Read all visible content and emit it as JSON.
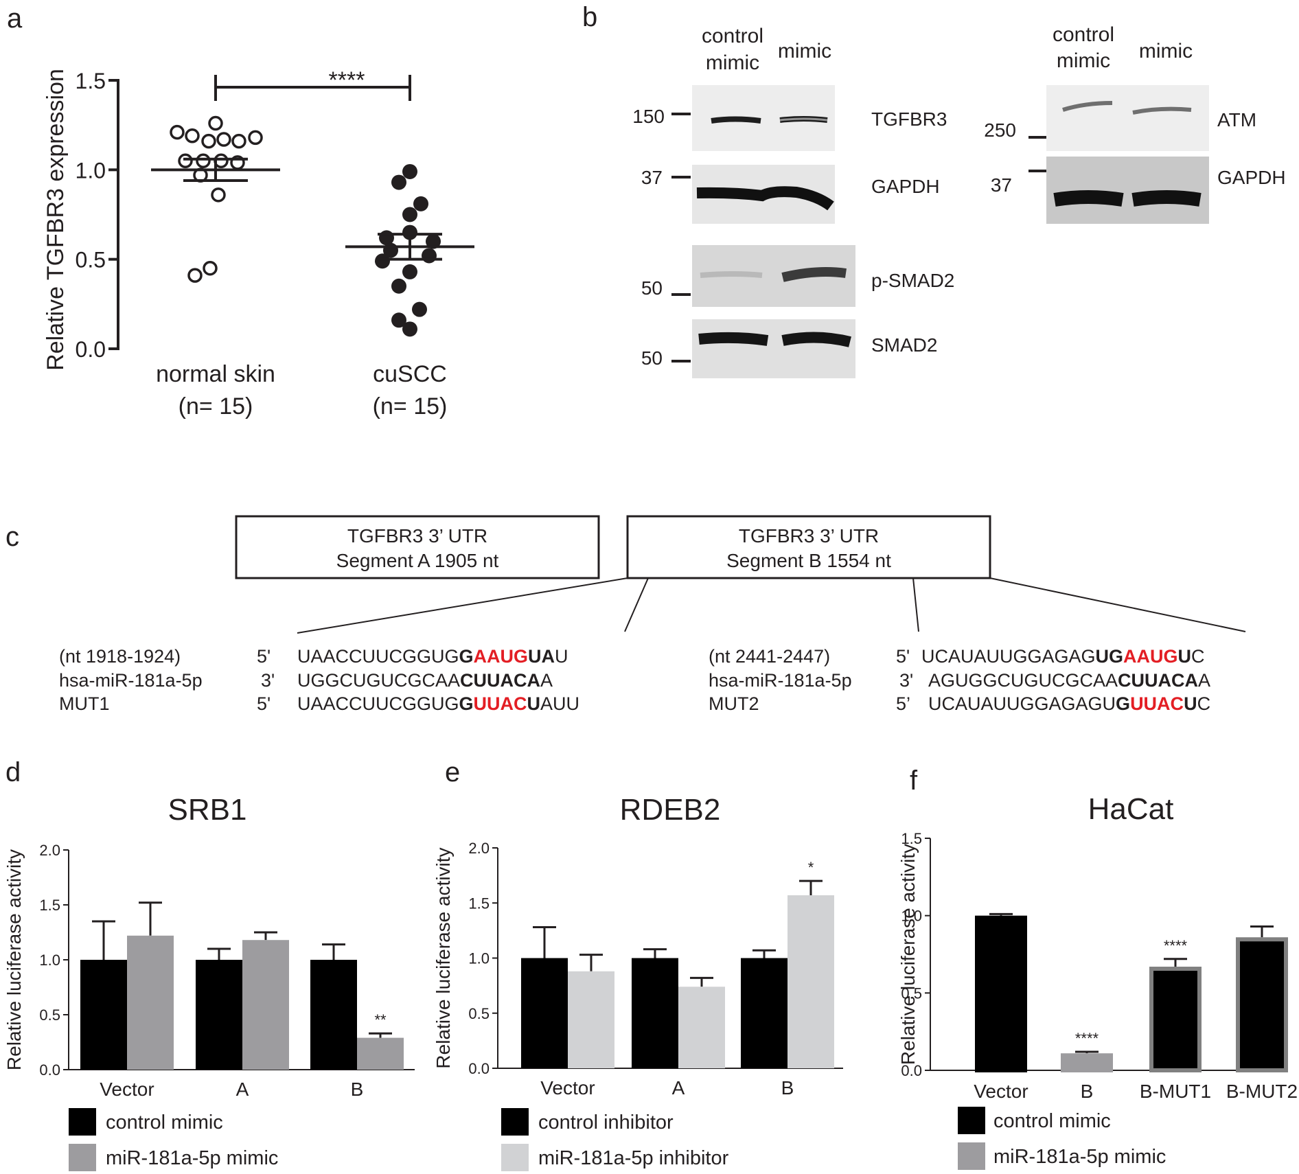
{
  "panel_letters": {
    "a": "a",
    "b": "b",
    "c": "c",
    "d": "d",
    "e": "e",
    "f": "f"
  },
  "chart_data": [
    {
      "id": "a",
      "type": "scatter",
      "title": "",
      "xlabel": "",
      "ylabel": "Relative TGFBR3 expression",
      "ylim": [
        0,
        1.5
      ],
      "yticks": [
        "0.0",
        "0.5",
        "1.0",
        "1.5"
      ],
      "categories": [
        "normal skin",
        "cuSCC"
      ],
      "category_n": [
        "(n= 15)",
        "(n= 15)"
      ],
      "significance": "****",
      "series": [
        {
          "name": "normal skin",
          "marker": "open-circle",
          "values": [
            1.21,
            1.19,
            1.16,
            1.17,
            1.16,
            1.18,
            1.26,
            1.05,
            1.05,
            1.05,
            1.04,
            0.97,
            0.86,
            0.41,
            0.45
          ],
          "mean": 1.0,
          "sem": 0.06
        },
        {
          "name": "cuSCC",
          "marker": "filled-circle",
          "values": [
            0.99,
            0.93,
            0.81,
            0.75,
            0.62,
            0.65,
            0.6,
            0.55,
            0.52,
            0.49,
            0.43,
            0.35,
            0.22,
            0.16,
            0.11
          ],
          "mean": 0.57,
          "sem": 0.07
        }
      ]
    },
    {
      "id": "d",
      "type": "bar",
      "title": "SRB1",
      "ylabel": "Relative luciferase activity",
      "ylim": [
        0,
        2.0
      ],
      "yticks": [
        "0.0",
        "0.5",
        "1.0",
        "1.5",
        "2.0"
      ],
      "categories": [
        "Vector",
        "A",
        "B"
      ],
      "series": [
        {
          "name": "control mimic",
          "color": "#000000",
          "values": [
            1.0,
            1.0,
            1.0
          ],
          "errors": [
            0.35,
            0.1,
            0.14
          ]
        },
        {
          "name": "miR-181a-5p mimic",
          "color": "#9d9c9f",
          "values": [
            1.22,
            1.18,
            0.29
          ],
          "errors": [
            0.3,
            0.07,
            0.04
          ]
        }
      ],
      "annotations": [
        {
          "series": 1,
          "index": 2,
          "text": "**"
        }
      ]
    },
    {
      "id": "e",
      "type": "bar",
      "title": "RDEB2",
      "ylabel": "Relative luciferase activity",
      "ylim": [
        0,
        2.0
      ],
      "yticks": [
        "0.0",
        "0.5",
        "1.0",
        "1.5",
        "2.0"
      ],
      "categories": [
        "Vector",
        "A",
        "B"
      ],
      "series": [
        {
          "name": "control inhibitor",
          "color": "#000000",
          "values": [
            1.0,
            1.0,
            1.0
          ],
          "errors": [
            0.28,
            0.08,
            0.07
          ]
        },
        {
          "name": "miR-181a-5p inhibitor",
          "color": "#d1d2d4",
          "values": [
            0.88,
            0.74,
            1.57
          ],
          "errors": [
            0.15,
            0.08,
            0.13
          ]
        }
      ],
      "annotations": [
        {
          "series": 1,
          "index": 2,
          "text": "*"
        }
      ]
    },
    {
      "id": "f",
      "type": "bar",
      "title": "HaCat",
      "ylabel": "Relative luciferase activity",
      "ylim": [
        0,
        1.5
      ],
      "yticks": [
        "0.0",
        "0.5",
        "1.0",
        "1.5"
      ],
      "categories": [
        "Vector",
        "B",
        "B-MUT1",
        "B-MUT2"
      ],
      "bars": [
        {
          "value": 1.0,
          "error": 0.01,
          "color": "#000000",
          "edge": "#000000"
        },
        {
          "value": 0.11,
          "error": 0.01,
          "color": "#9d9c9f",
          "edge": "#9d9c9f"
        },
        {
          "value": 0.67,
          "error": 0.05,
          "color": "#000000",
          "edge": "#808080"
        },
        {
          "value": 0.86,
          "error": 0.07,
          "color": "#000000",
          "edge": "#808080"
        }
      ],
      "legend": [
        {
          "name": "control mimic",
          "color": "#000000"
        },
        {
          "name": "miR-181a-5p mimic",
          "color": "#9d9c9f"
        }
      ],
      "annotations": [
        {
          "index": 1,
          "text": "****"
        },
        {
          "index": 2,
          "text": "****"
        }
      ]
    }
  ],
  "blot": {
    "left_header": [
      "control",
      "mimic"
    ],
    "left_header2": "mimic",
    "right_header": [
      "control",
      "mimic"
    ],
    "right_header2": "mimic",
    "left_bands": [
      "TGFBR3",
      "GAPDH",
      "p-SMAD2",
      "SMAD2"
    ],
    "left_markers": [
      "150",
      "37",
      "50",
      "50"
    ],
    "right_bands": [
      "ATM",
      "GAPDH"
    ],
    "right_markers": [
      "250",
      "37"
    ]
  },
  "schematic": {
    "segment_a": [
      "TGFBR3 3’ UTR",
      "Segment A 1905 nt"
    ],
    "segment_b": [
      "TGFBR3 3’ UTR",
      "Segment B 1554  nt"
    ],
    "left": {
      "labels": [
        "(nt 1918-1924)",
        "hsa-miR-181a-5p",
        "MUT1"
      ],
      "ends": [
        "5'",
        "3'",
        "5'"
      ],
      "row1": [
        "UAACCUUCGGUG",
        "G",
        "AAUG",
        "UA",
        "U"
      ],
      "row2": [
        "UGGCUGUCGCAA",
        "CUUACA",
        "A"
      ],
      "row3": [
        "UAACCUUCGGUG",
        "G",
        "UUAC",
        "U",
        "AUU"
      ]
    },
    "right": {
      "labels": [
        "(nt 2441-2447)",
        "hsa-miR-181a-5p",
        "MUT2"
      ],
      "ends": [
        "5'",
        "3'",
        "5’"
      ],
      "row1": [
        "UCAUAUUGGAGAG",
        "UG",
        "AAUG",
        "U",
        "C"
      ],
      "row2": [
        "AGUGGCUGUCGCAA",
        "CUUACA",
        "A"
      ],
      "row3": [
        "UCAUAUUGGAGAGU",
        "G",
        "UUAC",
        "U",
        "C"
      ]
    }
  }
}
